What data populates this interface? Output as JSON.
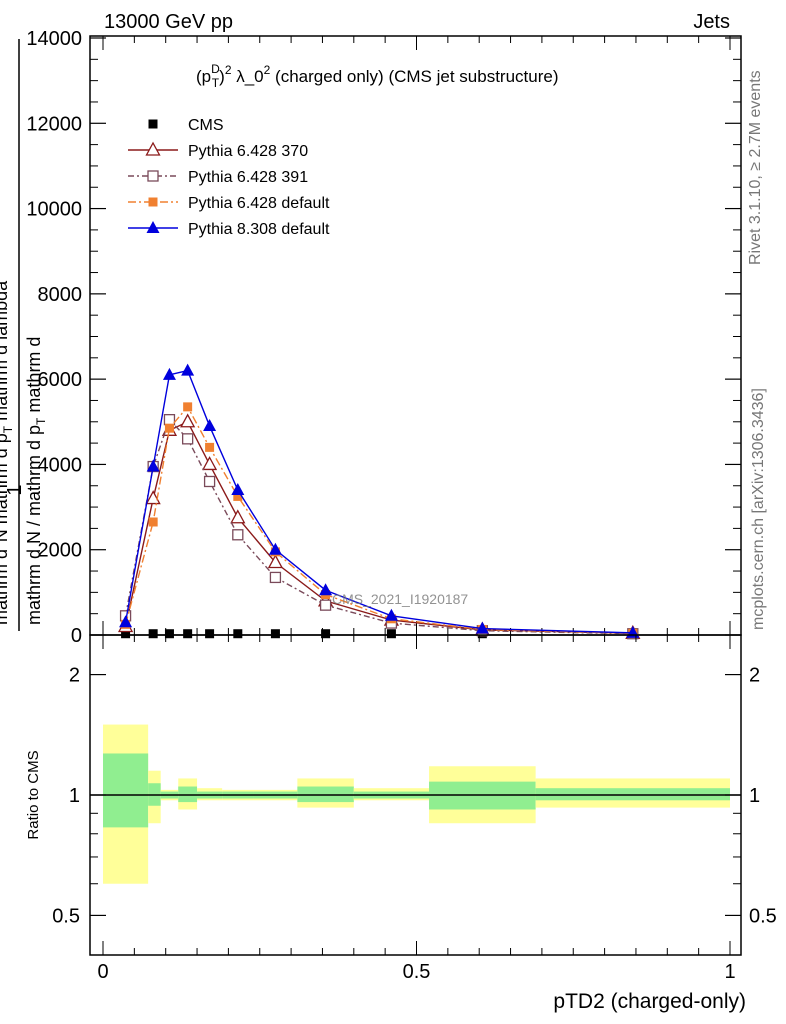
{
  "header": {
    "left": "13000 GeV pp",
    "right": "Jets"
  },
  "side_labels": {
    "rivet": "Rivet 3.1.10, ≥ 2.7M events",
    "mcplots": "mcplots.cern.ch [arXiv:1306.3436]"
  },
  "watermark": "CMS_2021_I1920187",
  "colors": {
    "cms": "#000000",
    "py370": "#8b1a1a",
    "py391": "#7a4a5a",
    "py_default": "#f08030",
    "py8": "#0000dd",
    "band_inner": "#90ee90",
    "band_outer": "#ffff99"
  },
  "chart_data": [
    {
      "type": "line",
      "title_parts": {
        "p": "(p",
        "sub": "T",
        "sup1": "D",
        "sup2": "2",
        "rest": " λ_0",
        "sup3": "2",
        "suffix": " (charged only) (CMS jet substructure)"
      },
      "ylabel_parts": {
        "one": "1",
        "den_a": "mathrm d N / mathrm d p",
        "den_a_sub": "T",
        "den_b": "mathrm d",
        "num_a": "mathrm d",
        "num_a_sup": "2",
        "num_b": "N",
        "num_c": "mathrm d p",
        "num_c_sub": "T",
        "num_d": "mathrm d lambda"
      },
      "xlim": [
        0,
        1
      ],
      "ylim": [
        0,
        14000
      ],
      "y_ticks": [
        "0",
        "2000",
        "4000",
        "6000",
        "8000",
        "10000",
        "12000",
        "14000"
      ],
      "grid": false,
      "legend_position": "top-left",
      "x": [
        0.036,
        0.08,
        0.106,
        0.135,
        0.17,
        0.215,
        0.275,
        0.355,
        0.46,
        0.605,
        0.845
      ],
      "series": [
        {
          "name": "CMS",
          "values": [
            30,
            30,
            30,
            30,
            30,
            30,
            30,
            30,
            30,
            30,
            30
          ]
        },
        {
          "name": "Pythia 6.428 370",
          "values": [
            200,
            3200,
            4800,
            5000,
            4000,
            2750,
            1700,
            800,
            350,
            120,
            40
          ]
        },
        {
          "name": "Pythia 6.428 391",
          "values": [
            450,
            3950,
            5050,
            4600,
            3600,
            2350,
            1350,
            700,
            280,
            100,
            30
          ]
        },
        {
          "name": "Pythia 6.428 default",
          "values": [
            250,
            2650,
            4850,
            5350,
            4400,
            3250,
            1950,
            950,
            380,
            130,
            40
          ]
        },
        {
          "name": "Pythia 8.308 default",
          "values": [
            300,
            3950,
            6100,
            6200,
            4900,
            3400,
            2000,
            1050,
            450,
            150,
            50
          ]
        }
      ]
    },
    {
      "type": "area",
      "ylabel": "Ratio to CMS",
      "xlabel": "pTD2 (charged-only)",
      "xlim": [
        0,
        1
      ],
      "ylim": [
        0.4,
        2.4
      ],
      "log_y": true,
      "x_ticks": [
        "0",
        "0.5",
        "1"
      ],
      "y_ticks": [
        "0.5",
        "1",
        "2"
      ],
      "bins": [
        {
          "lo": 0.0,
          "hi": 0.072,
          "inner": [
            0.83,
            1.27
          ],
          "outer": [
            0.6,
            1.5
          ]
        },
        {
          "lo": 0.072,
          "hi": 0.092,
          "inner": [
            0.94,
            1.07
          ],
          "outer": [
            0.85,
            1.15
          ]
        },
        {
          "lo": 0.092,
          "hi": 0.12,
          "inner": [
            0.98,
            1.02
          ],
          "outer": [
            0.97,
            1.03
          ]
        },
        {
          "lo": 0.12,
          "hi": 0.15,
          "inner": [
            0.96,
            1.05
          ],
          "outer": [
            0.92,
            1.1
          ]
        },
        {
          "lo": 0.15,
          "hi": 0.19,
          "inner": [
            0.98,
            1.02
          ],
          "outer": [
            0.97,
            1.04
          ]
        },
        {
          "lo": 0.19,
          "hi": 0.24,
          "inner": [
            0.98,
            1.02
          ],
          "outer": [
            0.97,
            1.03
          ]
        },
        {
          "lo": 0.24,
          "hi": 0.31,
          "inner": [
            0.98,
            1.02
          ],
          "outer": [
            0.97,
            1.03
          ]
        },
        {
          "lo": 0.31,
          "hi": 0.4,
          "inner": [
            0.96,
            1.05
          ],
          "outer": [
            0.93,
            1.1
          ]
        },
        {
          "lo": 0.4,
          "hi": 0.52,
          "inner": [
            0.98,
            1.02
          ],
          "outer": [
            0.97,
            1.04
          ]
        },
        {
          "lo": 0.52,
          "hi": 0.69,
          "inner": [
            0.92,
            1.08
          ],
          "outer": [
            0.85,
            1.18
          ]
        },
        {
          "lo": 0.69,
          "hi": 1.0,
          "inner": [
            0.97,
            1.04
          ],
          "outer": [
            0.93,
            1.1
          ]
        }
      ]
    }
  ]
}
